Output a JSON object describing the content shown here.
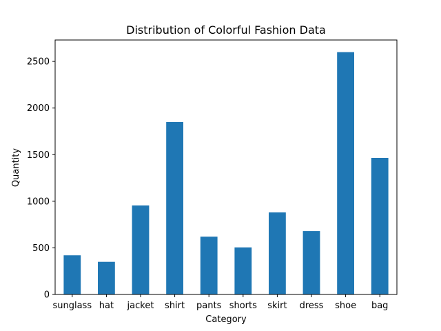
{
  "chart_data": {
    "type": "bar",
    "title": "Distribution of Colorful Fashion Data",
    "xlabel": "Category",
    "ylabel": "Quantity",
    "categories": [
      "sunglass",
      "hat",
      "jacket",
      "shirt",
      "pants",
      "shorts",
      "skirt",
      "dress",
      "shoe",
      "bag"
    ],
    "values": [
      420,
      350,
      955,
      1850,
      620,
      505,
      880,
      680,
      2600,
      1465
    ],
    "ylim": [
      0,
      2730
    ],
    "yticks": [
      0,
      500,
      1000,
      1500,
      2000,
      2500
    ],
    "bar_color": "#1f77b4",
    "grid": false,
    "legend": false
  }
}
